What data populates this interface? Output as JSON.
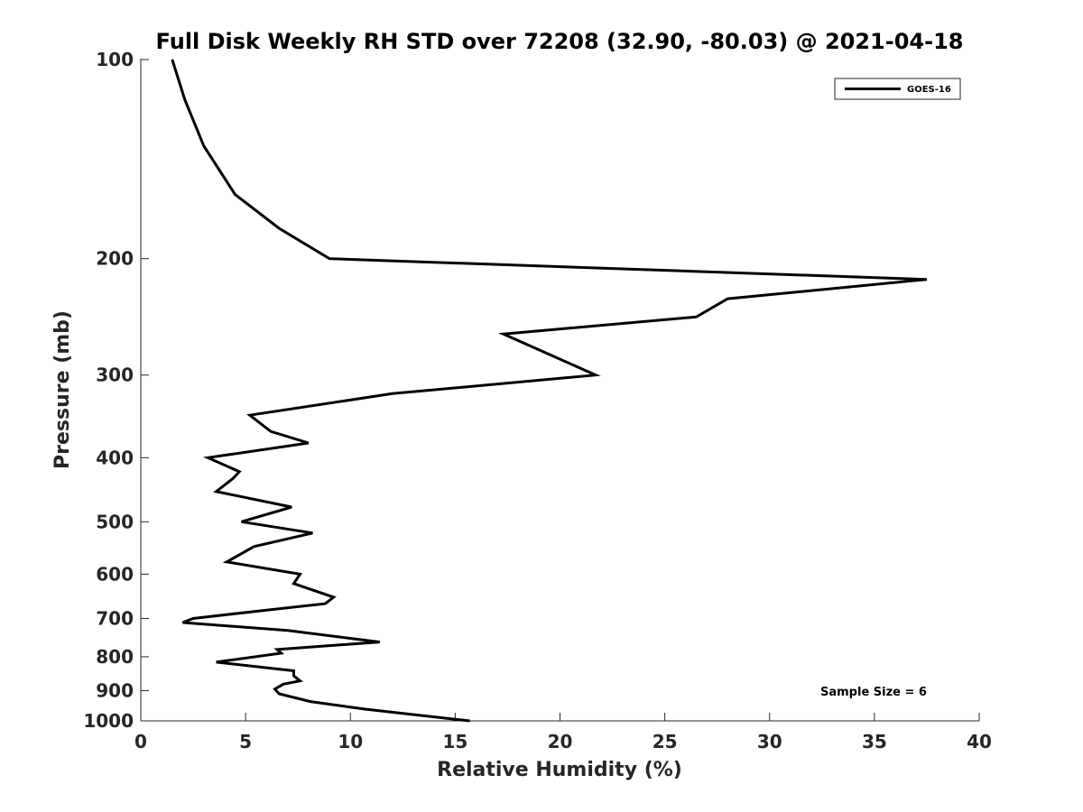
{
  "chart_data": {
    "type": "line",
    "title": "Full Disk Weekly RH STD over 72208 (32.90, -80.03) @ 2021-04-18",
    "xlabel": "Relative Humidity (%)",
    "ylabel": "Pressure (mb)",
    "xlim": [
      0,
      40
    ],
    "ylim": [
      100,
      1000
    ],
    "y_scale": "log",
    "y_reversed": true,
    "grid": false,
    "x_ticks": [
      0,
      5,
      10,
      15,
      20,
      25,
      30,
      35,
      40
    ],
    "y_ticks": [
      100,
      200,
      300,
      400,
      500,
      600,
      700,
      800,
      900,
      1000
    ],
    "legend_position": "top-right",
    "annotation": "Sample Size = 6",
    "line_color": "#000000",
    "series": [
      {
        "name": "GOES-16",
        "points": [
          [
            1.5,
            100
          ],
          [
            2.1,
            115
          ],
          [
            3.0,
            135
          ],
          [
            4.5,
            160
          ],
          [
            6.6,
            180
          ],
          [
            9.0,
            200
          ],
          [
            37.5,
            215
          ],
          [
            28.0,
            230
          ],
          [
            26.5,
            245
          ],
          [
            17.3,
            260
          ],
          [
            21.7,
            300
          ],
          [
            12.0,
            320
          ],
          [
            5.2,
            345
          ],
          [
            6.2,
            365
          ],
          [
            8.0,
            380
          ],
          [
            3.2,
            400
          ],
          [
            4.7,
            420
          ],
          [
            4.4,
            430
          ],
          [
            3.6,
            450
          ],
          [
            7.2,
            475
          ],
          [
            4.8,
            500
          ],
          [
            8.2,
            520
          ],
          [
            5.4,
            545
          ],
          [
            4.1,
            575
          ],
          [
            7.6,
            600
          ],
          [
            7.3,
            620
          ],
          [
            9.2,
            650
          ],
          [
            8.8,
            665
          ],
          [
            6.0,
            680
          ],
          [
            2.5,
            700
          ],
          [
            2.0,
            710
          ],
          [
            7.0,
            730
          ],
          [
            11.4,
            760
          ],
          [
            6.5,
            780
          ],
          [
            6.7,
            790
          ],
          [
            3.6,
            815
          ],
          [
            7.3,
            840
          ],
          [
            7.3,
            855
          ],
          [
            7.6,
            870
          ],
          [
            6.8,
            880
          ],
          [
            6.4,
            895
          ],
          [
            6.6,
            910
          ],
          [
            8.1,
            935
          ],
          [
            10.7,
            960
          ],
          [
            15.7,
            1000
          ]
        ]
      }
    ]
  }
}
